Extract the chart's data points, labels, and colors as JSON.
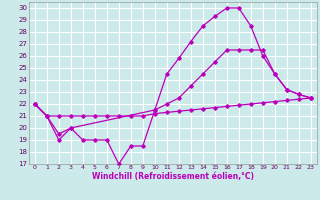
{
  "xlabel": "Windchill (Refroidissement éolien,°C)",
  "bg_color": "#cceaea",
  "grid_color": "#ffffff",
  "line_color": "#bb00bb",
  "xlim": [
    -0.5,
    23.5
  ],
  "ylim": [
    17,
    30.5
  ],
  "xticks": [
    0,
    1,
    2,
    3,
    4,
    5,
    6,
    7,
    8,
    9,
    10,
    11,
    12,
    13,
    14,
    15,
    16,
    17,
    18,
    19,
    20,
    21,
    22,
    23
  ],
  "yticks": [
    17,
    18,
    19,
    20,
    21,
    22,
    23,
    24,
    25,
    26,
    27,
    28,
    29,
    30
  ],
  "line1_x": [
    0,
    1,
    2,
    3,
    4,
    5,
    6,
    7,
    8,
    9,
    10,
    11,
    12,
    13,
    14,
    15,
    16,
    17,
    18,
    19,
    20,
    21,
    22,
    23
  ],
  "line1_y": [
    22.0,
    21.0,
    19.0,
    20.0,
    19.0,
    19.0,
    19.0,
    17.0,
    18.5,
    18.5,
    21.5,
    24.5,
    25.8,
    27.2,
    28.5,
    29.3,
    30.0,
    30.0,
    28.5,
    26.0,
    24.5,
    23.2,
    22.8,
    22.5
  ],
  "line2_x": [
    0,
    1,
    2,
    3,
    10,
    11,
    12,
    13,
    14,
    15,
    16,
    17,
    18,
    19,
    20,
    21,
    22,
    23
  ],
  "line2_y": [
    22.0,
    21.0,
    19.5,
    20.0,
    21.5,
    22.0,
    22.5,
    23.5,
    24.5,
    25.5,
    26.5,
    26.5,
    26.5,
    26.5,
    24.5,
    23.2,
    22.8,
    22.5
  ],
  "line3_x": [
    0,
    1,
    2,
    3,
    4,
    5,
    6,
    7,
    8,
    9,
    10,
    11,
    12,
    13,
    14,
    15,
    16,
    17,
    18,
    19,
    20,
    21,
    22,
    23
  ],
  "line3_y": [
    22.0,
    21.0,
    21.0,
    21.0,
    21.0,
    21.0,
    21.0,
    21.0,
    21.0,
    21.0,
    21.2,
    21.3,
    21.4,
    21.5,
    21.6,
    21.7,
    21.8,
    21.9,
    22.0,
    22.1,
    22.2,
    22.3,
    22.4,
    22.5
  ]
}
